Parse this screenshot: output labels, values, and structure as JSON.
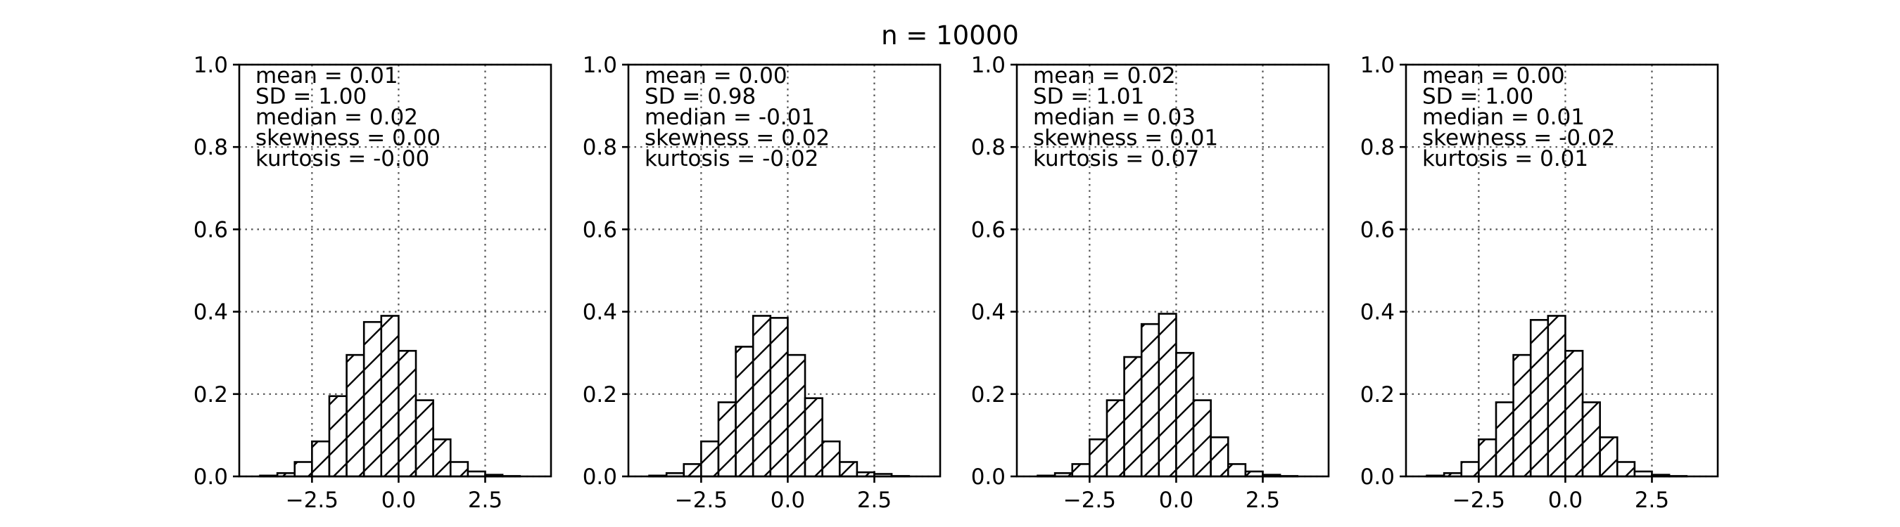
{
  "chart_data": {
    "type": "bar",
    "title": "n = 10000",
    "xlim": [
      -4.6,
      4.4
    ],
    "ylim": [
      0,
      1.0
    ],
    "xticks": [
      -2.5,
      0.0,
      2.5
    ],
    "xtick_labels": [
      "−2.5",
      "0.0",
      "2.5"
    ],
    "yticks": [
      0,
      0.2,
      0.4,
      0.6,
      0.8,
      1.0
    ],
    "ytick_labels": [
      "0.0",
      "0.2",
      "0.4",
      "0.6",
      "0.8",
      "1.0"
    ],
    "grid": true,
    "bin_edges": [
      -4.0,
      -3.5,
      -3.0,
      -2.5,
      -2.0,
      -1.5,
      -1.0,
      -0.5,
      0.0,
      0.5,
      1.0,
      1.5,
      2.0,
      2.5,
      3.0,
      3.5,
      4.0
    ],
    "panels": [
      {
        "stats": [
          "mean = 0.01",
          "SD = 1.00",
          "median = 0.02",
          "skewness = 0.00",
          "kurtosis = -0.00"
        ],
        "values": [
          0.002,
          0.008,
          0.035,
          0.085,
          0.195,
          0.295,
          0.375,
          0.39,
          0.305,
          0.185,
          0.09,
          0.035,
          0.012,
          0.004,
          0.001,
          0.0
        ]
      },
      {
        "stats": [
          "mean = 0.00",
          "SD = 0.98",
          "median = -0.01",
          "skewness = 0.02",
          "kurtosis = -0.02"
        ],
        "values": [
          0.002,
          0.008,
          0.03,
          0.085,
          0.18,
          0.315,
          0.39,
          0.385,
          0.295,
          0.19,
          0.085,
          0.035,
          0.01,
          0.006,
          0.001,
          0.0
        ]
      },
      {
        "stats": [
          "mean = 0.02",
          "SD = 1.01",
          "median = 0.03",
          "skewness = 0.01",
          "kurtosis = 0.07"
        ],
        "values": [
          0.002,
          0.008,
          0.03,
          0.09,
          0.185,
          0.29,
          0.37,
          0.395,
          0.3,
          0.185,
          0.095,
          0.03,
          0.012,
          0.004,
          0.001,
          0.0
        ]
      },
      {
        "stats": [
          "mean = 0.00",
          "SD = 1.00",
          "median = 0.01",
          "skewness = -0.02",
          "kurtosis = 0.01"
        ],
        "values": [
          0.002,
          0.008,
          0.035,
          0.09,
          0.18,
          0.295,
          0.38,
          0.39,
          0.305,
          0.18,
          0.095,
          0.035,
          0.012,
          0.004,
          0.001,
          0.0
        ]
      }
    ]
  }
}
